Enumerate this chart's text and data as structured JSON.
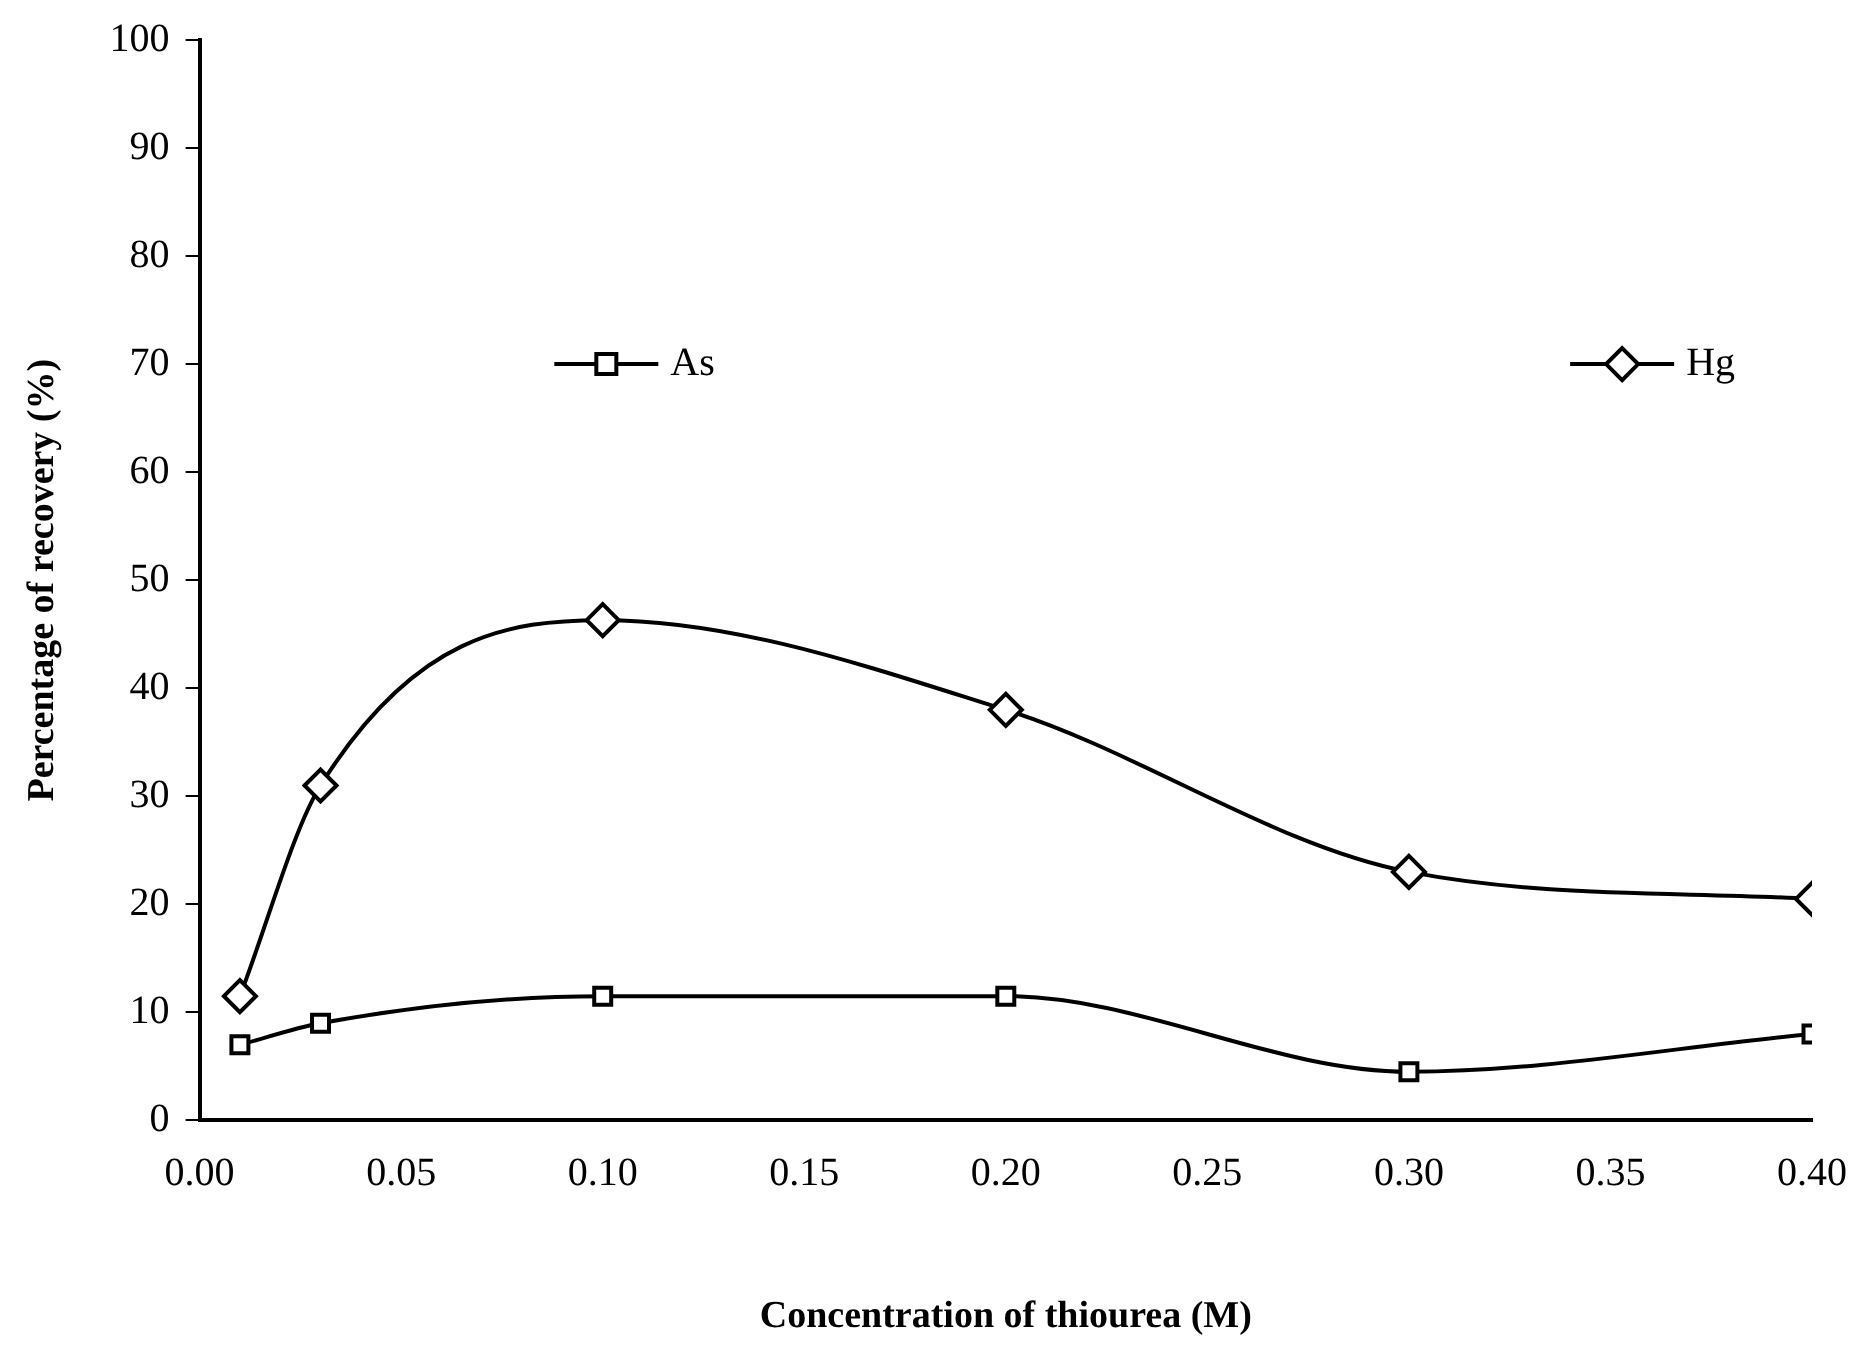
{
  "chart_data": {
    "type": "line",
    "xlabel": "Concentration of thiourea (M)",
    "ylabel": "Percentage of recovery (%)",
    "x": [
      0.01,
      0.03,
      0.1,
      0.2,
      0.3,
      0.4
    ],
    "series": [
      {
        "name": "As",
        "color": "#000000",
        "marker": "square",
        "values": [
          7,
          9,
          11.5,
          11.5,
          4.5,
          8
        ]
      },
      {
        "name": "Hg",
        "color": "#000000",
        "marker": "diamond",
        "values": [
          11.5,
          31,
          46.3,
          38,
          23,
          20.5
        ]
      }
    ],
    "xlim": [
      0,
      0.4
    ],
    "xticks": [
      {
        "value": 0,
        "label": "0.00"
      },
      {
        "value": 0.05,
        "label": "0.05"
      },
      {
        "value": 0.1,
        "label": "0.10"
      },
      {
        "value": 0.15,
        "label": "0.15"
      },
      {
        "value": 0.2,
        "label": "0.20"
      },
      {
        "value": 0.25,
        "label": "0.25"
      },
      {
        "value": 0.3,
        "label": "0.30"
      },
      {
        "value": 0.35,
        "label": "0.35"
      },
      {
        "value": 0.4,
        "label": "0.40"
      }
    ],
    "ylim": [
      0,
      100
    ],
    "yticks": [
      0,
      10,
      20,
      30,
      40,
      50,
      60,
      70,
      80,
      90,
      100
    ],
    "grid": false,
    "legend": "top",
    "line_style": "solid"
  }
}
